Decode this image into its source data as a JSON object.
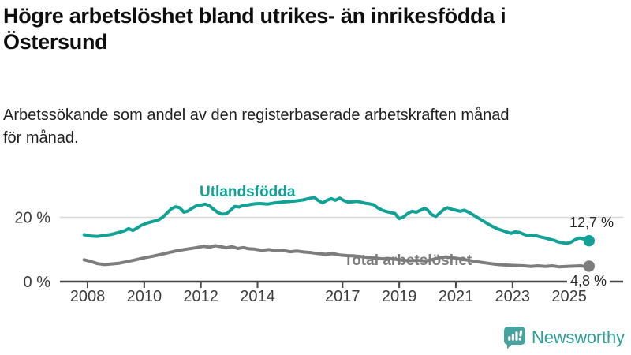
{
  "header": {
    "title_lines": [
      "Högre arbetslöshet bland utrikes- än inrikesfödda i",
      "Östersund"
    ],
    "subtitle_lines": [
      "Arbetssökande som andel av den registerbaserade arbetskraften månad",
      "för månad."
    ]
  },
  "chart_data": {
    "type": "line",
    "title": "Högre arbetslöshet bland utrikes- än inrikesfödda i Östersund",
    "subtitle": "Arbetssökande som andel av den registerbaserade arbetskraften månad för månad.",
    "unit": "%",
    "xlabel": "",
    "ylabel": "",
    "ylim": [
      0,
      27
    ],
    "x_range": [
      2008,
      2025.7
    ],
    "grid": "horizontal-only",
    "legend_position": "inline-labels",
    "axis_color": "#454545",
    "grid_color": "#d9d9d9",
    "tick_label_color": "#3d3d3d",
    "x_ticks": [
      "2008",
      "2010",
      "2012",
      "2014",
      "2017",
      "2019",
      "2021",
      "2023",
      "2025"
    ],
    "x_tick_years": [
      2008,
      2010,
      2012,
      2014,
      2017,
      2019,
      2021,
      2023,
      2025
    ],
    "y_ticks": [
      {
        "value": 0,
        "label": "0 %"
      },
      {
        "value": 20,
        "label": "20 %"
      }
    ],
    "series": [
      {
        "name": "Utlandsfödda",
        "color": "#11a295",
        "end_label": "12,7 %",
        "end_value": 12.7,
        "points": [
          [
            2007.88,
            14.6
          ],
          [
            2008.1,
            14.2
          ],
          [
            2008.35,
            14.05
          ],
          [
            2008.6,
            14.4
          ],
          [
            2008.85,
            14.7
          ],
          [
            2009.1,
            15.3
          ],
          [
            2009.3,
            15.8
          ],
          [
            2009.45,
            16.5
          ],
          [
            2009.6,
            15.9
          ],
          [
            2009.75,
            16.7
          ],
          [
            2009.9,
            17.5
          ],
          [
            2010.1,
            18.2
          ],
          [
            2010.3,
            18.7
          ],
          [
            2010.5,
            19.2
          ],
          [
            2010.65,
            20.0
          ],
          [
            2010.8,
            21.3
          ],
          [
            2010.95,
            22.6
          ],
          [
            2011.1,
            23.3
          ],
          [
            2011.25,
            23.0
          ],
          [
            2011.4,
            21.6
          ],
          [
            2011.55,
            22.0
          ],
          [
            2011.7,
            22.9
          ],
          [
            2011.85,
            23.6
          ],
          [
            2012.0,
            23.8
          ],
          [
            2012.15,
            24.1
          ],
          [
            2012.3,
            23.6
          ],
          [
            2012.45,
            22.5
          ],
          [
            2012.6,
            21.5
          ],
          [
            2012.75,
            21.0
          ],
          [
            2012.9,
            21.1
          ],
          [
            2013.05,
            22.2
          ],
          [
            2013.2,
            23.4
          ],
          [
            2013.35,
            23.2
          ],
          [
            2013.5,
            23.7
          ],
          [
            2013.7,
            23.9
          ],
          [
            2013.9,
            24.2
          ],
          [
            2014.1,
            24.3
          ],
          [
            2014.35,
            24.1
          ],
          [
            2014.6,
            24.5
          ],
          [
            2014.85,
            24.7
          ],
          [
            2015.1,
            24.9
          ],
          [
            2015.35,
            25.1
          ],
          [
            2015.6,
            25.4
          ],
          [
            2015.85,
            25.9
          ],
          [
            2016.0,
            26.2
          ],
          [
            2016.15,
            25.2
          ],
          [
            2016.3,
            24.5
          ],
          [
            2016.45,
            25.3
          ],
          [
            2016.6,
            25.8
          ],
          [
            2016.75,
            25.3
          ],
          [
            2016.9,
            26.0
          ],
          [
            2017.05,
            25.2
          ],
          [
            2017.2,
            24.7
          ],
          [
            2017.35,
            24.8
          ],
          [
            2017.5,
            25.0
          ],
          [
            2017.65,
            24.7
          ],
          [
            2017.8,
            24.4
          ],
          [
            2017.95,
            24.2
          ],
          [
            2018.1,
            23.9
          ],
          [
            2018.25,
            22.9
          ],
          [
            2018.4,
            22.2
          ],
          [
            2018.55,
            21.8
          ],
          [
            2018.7,
            21.5
          ],
          [
            2018.85,
            21.2
          ],
          [
            2019.0,
            19.6
          ],
          [
            2019.15,
            20.1
          ],
          [
            2019.3,
            21.2
          ],
          [
            2019.45,
            21.9
          ],
          [
            2019.6,
            21.6
          ],
          [
            2019.75,
            22.2
          ],
          [
            2019.9,
            22.8
          ],
          [
            2020.0,
            22.3
          ],
          [
            2020.15,
            20.8
          ],
          [
            2020.3,
            20.3
          ],
          [
            2020.45,
            21.5
          ],
          [
            2020.6,
            22.6
          ],
          [
            2020.7,
            23.0
          ],
          [
            2020.85,
            22.5
          ],
          [
            2021.0,
            22.2
          ],
          [
            2021.15,
            21.9
          ],
          [
            2021.3,
            22.2
          ],
          [
            2021.45,
            21.6
          ],
          [
            2021.6,
            20.8
          ],
          [
            2021.75,
            20.0
          ],
          [
            2021.9,
            19.2
          ],
          [
            2022.05,
            18.4
          ],
          [
            2022.2,
            17.6
          ],
          [
            2022.35,
            16.9
          ],
          [
            2022.5,
            16.3
          ],
          [
            2022.65,
            15.9
          ],
          [
            2022.8,
            15.4
          ],
          [
            2022.95,
            15.0
          ],
          [
            2023.1,
            15.5
          ],
          [
            2023.25,
            15.3
          ],
          [
            2023.4,
            14.7
          ],
          [
            2023.55,
            14.3
          ],
          [
            2023.7,
            14.5
          ],
          [
            2023.85,
            14.2
          ],
          [
            2024.0,
            13.9
          ],
          [
            2024.15,
            13.6
          ],
          [
            2024.3,
            13.2
          ],
          [
            2024.45,
            12.9
          ],
          [
            2024.6,
            12.4
          ],
          [
            2024.75,
            12.1
          ],
          [
            2024.9,
            11.9
          ],
          [
            2025.05,
            12.2
          ],
          [
            2025.2,
            13.0
          ],
          [
            2025.35,
            13.6
          ],
          [
            2025.5,
            13.3
          ],
          [
            2025.6,
            12.9
          ],
          [
            2025.7,
            12.7
          ]
        ]
      },
      {
        "name": "Total arbetslöshet",
        "color": "#7d7d7d",
        "end_label": "4,8 %",
        "end_value": 4.8,
        "points": [
          [
            2007.88,
            6.8
          ],
          [
            2008.1,
            6.3
          ],
          [
            2008.35,
            5.6
          ],
          [
            2008.6,
            5.3
          ],
          [
            2008.85,
            5.5
          ],
          [
            2009.1,
            5.7
          ],
          [
            2009.4,
            6.2
          ],
          [
            2009.7,
            6.8
          ],
          [
            2010.0,
            7.4
          ],
          [
            2010.3,
            7.9
          ],
          [
            2010.6,
            8.5
          ],
          [
            2010.9,
            9.1
          ],
          [
            2011.2,
            9.7
          ],
          [
            2011.5,
            10.1
          ],
          [
            2011.8,
            10.5
          ],
          [
            2012.1,
            11.0
          ],
          [
            2012.3,
            10.7
          ],
          [
            2012.5,
            11.2
          ],
          [
            2012.7,
            10.9
          ],
          [
            2012.9,
            10.5
          ],
          [
            2013.1,
            10.9
          ],
          [
            2013.3,
            10.3
          ],
          [
            2013.5,
            10.6
          ],
          [
            2013.7,
            10.2
          ],
          [
            2013.9,
            10.1
          ],
          [
            2014.15,
            9.7
          ],
          [
            2014.4,
            10.0
          ],
          [
            2014.65,
            9.6
          ],
          [
            2014.9,
            9.7
          ],
          [
            2015.15,
            9.3
          ],
          [
            2015.4,
            9.5
          ],
          [
            2015.65,
            9.2
          ],
          [
            2015.9,
            9.0
          ],
          [
            2016.15,
            8.7
          ],
          [
            2016.4,
            8.5
          ],
          [
            2016.65,
            8.7
          ],
          [
            2016.9,
            8.3
          ],
          [
            2017.15,
            8.1
          ],
          [
            2017.4,
            8.0
          ],
          [
            2017.65,
            7.8
          ],
          [
            2017.9,
            7.5
          ],
          [
            2018.15,
            7.3
          ],
          [
            2018.4,
            7.1
          ],
          [
            2018.65,
            7.2
          ],
          [
            2018.9,
            6.9
          ],
          [
            2019.15,
            6.6
          ],
          [
            2019.4,
            6.5
          ],
          [
            2019.65,
            6.6
          ],
          [
            2019.9,
            6.4
          ],
          [
            2020.15,
            6.8
          ],
          [
            2020.4,
            7.4
          ],
          [
            2020.65,
            7.7
          ],
          [
            2020.9,
            7.4
          ],
          [
            2021.15,
            7.1
          ],
          [
            2021.4,
            6.7
          ],
          [
            2021.65,
            6.3
          ],
          [
            2021.9,
            6.0
          ],
          [
            2022.15,
            5.7
          ],
          [
            2022.4,
            5.4
          ],
          [
            2022.65,
            5.2
          ],
          [
            2022.9,
            5.1
          ],
          [
            2023.15,
            5.0
          ],
          [
            2023.4,
            4.9
          ],
          [
            2023.65,
            4.7
          ],
          [
            2023.9,
            4.9
          ],
          [
            2024.15,
            4.7
          ],
          [
            2024.4,
            4.9
          ],
          [
            2024.65,
            4.6
          ],
          [
            2024.9,
            4.7
          ],
          [
            2025.15,
            4.8
          ],
          [
            2025.4,
            4.9
          ],
          [
            2025.55,
            4.7
          ],
          [
            2025.7,
            4.8
          ]
        ]
      }
    ]
  },
  "footer": {
    "brand": "Newsworthy",
    "brand_text_color": "#2f9e96",
    "brand_icon_color": "#45a49d"
  }
}
